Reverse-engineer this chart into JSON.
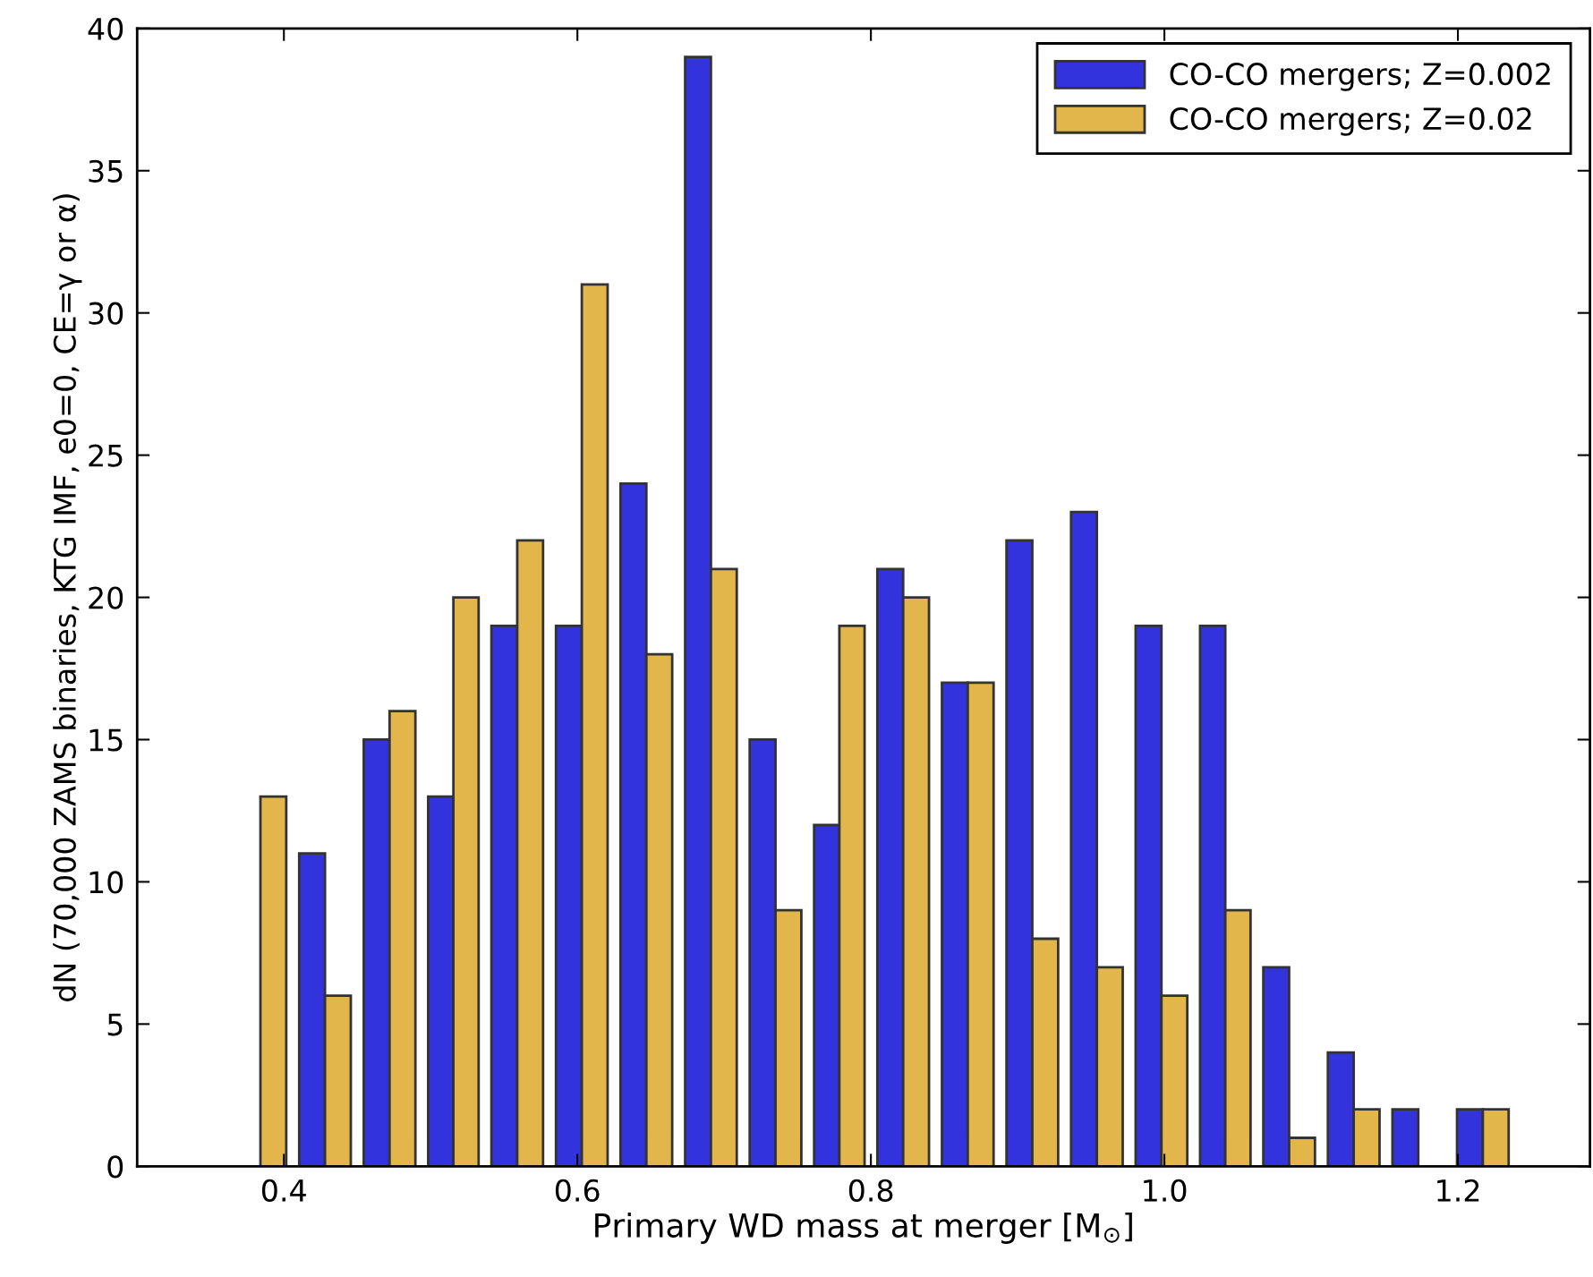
{
  "chart_data": {
    "type": "histogram",
    "xlabel": "Primary WD mass at merger [M$_{⊙}$]",
    "ylabel": "dN (70,000 ZAMS binaries, KTG IMF, e0=0, CE=γ or α)",
    "bins": [
      0.362,
      0.406,
      0.45,
      0.494,
      0.537,
      0.581,
      0.625,
      0.669,
      0.713,
      0.757,
      0.8,
      0.844,
      0.888,
      0.932,
      0.976,
      1.02,
      1.063,
      1.107,
      1.151,
      1.195,
      1.239
    ],
    "series": [
      {
        "name": "CO-CO mergers; Z=0.002",
        "color": "#3333dd",
        "values": [
          0,
          11,
          15,
          13,
          19,
          19,
          24,
          39,
          15,
          12,
          21,
          17,
          22,
          23,
          19,
          19,
          7,
          4,
          2,
          2
        ]
      },
      {
        "name": "CO-CO mergers; Z=0.02",
        "color": "#e2b64a",
        "values": [
          13,
          6,
          16,
          20,
          22,
          31,
          18,
          21,
          9,
          19,
          20,
          17,
          8,
          7,
          6,
          9,
          1,
          2,
          0,
          2
        ]
      }
    ],
    "xlim": [
      0.3,
      1.29
    ],
    "ylim": [
      0,
      40
    ],
    "xticks": [
      0.4,
      0.6,
      0.8,
      {
        "value": 1.0,
        "label": "1.0"
      },
      1.2
    ],
    "yticks": [
      0,
      5,
      10,
      15,
      20,
      25,
      30,
      35,
      40
    ],
    "legend": "top right",
    "grid": false
  }
}
